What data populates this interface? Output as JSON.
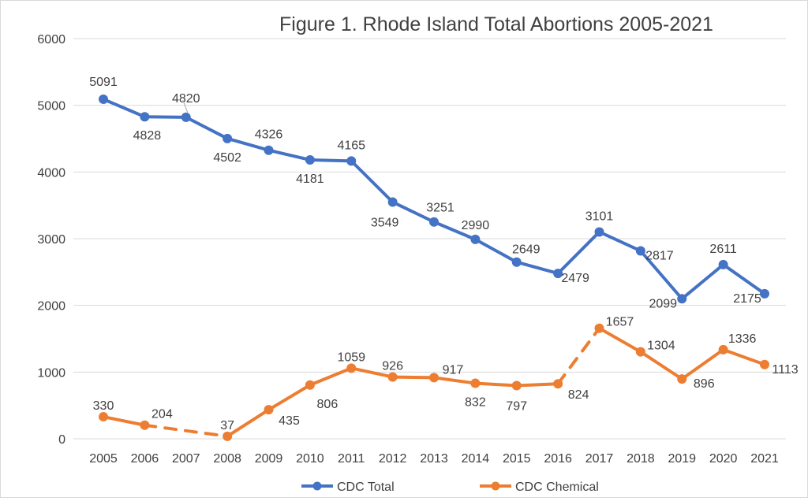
{
  "chart_data": {
    "type": "line",
    "title": "Figure 1. Rhode Island Total Abortions 2005-2021",
    "xlabel": "",
    "ylabel": "",
    "ylim": [
      0,
      6000
    ],
    "yticks": [
      0,
      1000,
      2000,
      3000,
      4000,
      5000,
      6000
    ],
    "grid": true,
    "legend": "bottom-center",
    "categories": [
      "2005",
      "2006",
      "2007",
      "2008",
      "2009",
      "2010",
      "2011",
      "2012",
      "2013",
      "2014",
      "2015",
      "2016",
      "2017",
      "2018",
      "2019",
      "2020",
      "2021"
    ],
    "series": [
      {
        "name": "CDC Total",
        "color": "#4472C4",
        "values": [
          5091,
          4828,
          4820,
          4502,
          4326,
          4181,
          4165,
          3549,
          3251,
          2990,
          2649,
          2479,
          3101,
          2817,
          2099,
          2611,
          2175
        ],
        "dashed_segments": []
      },
      {
        "name": "CDC Chemical",
        "color": "#ED7D31",
        "values": [
          330,
          204,
          null,
          37,
          435,
          806,
          1059,
          926,
          917,
          832,
          797,
          824,
          1657,
          1304,
          896,
          1336,
          1113
        ],
        "dashed_segments": [
          [
            "2006",
            "2008"
          ],
          [
            "2016",
            "2017"
          ]
        ]
      }
    ]
  }
}
